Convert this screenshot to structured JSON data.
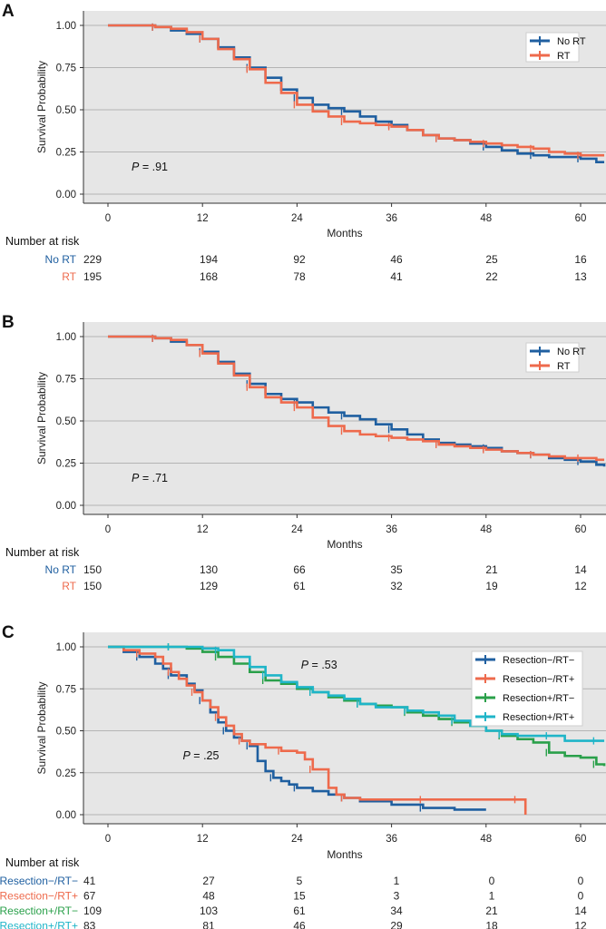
{
  "chart_data": [
    {
      "panel": "A",
      "type": "line",
      "xlabel": "Months",
      "ylabel": "Survival Probability",
      "x_ticks": [
        0,
        12,
        24,
        36,
        48,
        60
      ],
      "y_ticks": [
        "0.00",
        "0.25",
        "0.50",
        "0.75",
        "1.00"
      ],
      "xlim": [
        0,
        63
      ],
      "ylim": [
        0,
        1
      ],
      "p_value": {
        "label": "P",
        "value": " = .91"
      },
      "legend": "top-right",
      "series": [
        {
          "name": "No RT",
          "color": "#1f5fa0",
          "x": [
            0,
            4,
            6,
            8,
            10,
            12,
            14,
            16,
            18,
            20,
            22,
            24,
            26,
            28,
            30,
            32,
            34,
            36,
            38,
            40,
            42,
            44,
            46,
            48,
            50,
            52,
            54,
            56,
            58,
            60,
            62,
            63
          ],
          "y": [
            1.0,
            1.0,
            0.99,
            0.97,
            0.95,
            0.92,
            0.87,
            0.81,
            0.75,
            0.69,
            0.62,
            0.57,
            0.53,
            0.51,
            0.49,
            0.46,
            0.43,
            0.41,
            0.38,
            0.35,
            0.33,
            0.32,
            0.3,
            0.28,
            0.26,
            0.24,
            0.23,
            0.22,
            0.22,
            0.21,
            0.19,
            0.19
          ]
        },
        {
          "name": "RT",
          "color": "#ee6a4c",
          "x": [
            0,
            4,
            6,
            8,
            10,
            12,
            14,
            16,
            18,
            20,
            22,
            24,
            26,
            28,
            30,
            32,
            34,
            36,
            38,
            40,
            42,
            44,
            46,
            48,
            50,
            52,
            54,
            56,
            58,
            60,
            62,
            63
          ],
          "y": [
            1.0,
            1.0,
            0.99,
            0.98,
            0.96,
            0.92,
            0.86,
            0.8,
            0.74,
            0.66,
            0.6,
            0.53,
            0.49,
            0.46,
            0.43,
            0.42,
            0.41,
            0.4,
            0.38,
            0.35,
            0.33,
            0.32,
            0.31,
            0.3,
            0.29,
            0.28,
            0.27,
            0.25,
            0.24,
            0.23,
            0.23,
            0.23
          ]
        }
      ],
      "risk_table": {
        "title": "Number at risk",
        "rows": [
          {
            "name": "No RT",
            "color": "#1f5fa0",
            "values": [
              229,
              194,
              92,
              46,
              25,
              16
            ]
          },
          {
            "name": "RT",
            "color": "#ee6a4c",
            "values": [
              195,
              168,
              78,
              41,
              22,
              13
            ]
          }
        ]
      }
    },
    {
      "panel": "B",
      "type": "line",
      "xlabel": "Months",
      "ylabel": "Survival Probability",
      "x_ticks": [
        0,
        12,
        24,
        36,
        48,
        60
      ],
      "y_ticks": [
        "0.00",
        "0.25",
        "0.50",
        "0.75",
        "1.00"
      ],
      "xlim": [
        0,
        63
      ],
      "ylim": [
        0,
        1
      ],
      "p_value": {
        "label": "P",
        "value": " = .71"
      },
      "legend": "top-right",
      "series": [
        {
          "name": "No RT",
          "color": "#1f5fa0",
          "x": [
            0,
            4,
            6,
            8,
            10,
            12,
            14,
            16,
            18,
            20,
            22,
            24,
            26,
            28,
            30,
            32,
            34,
            36,
            38,
            40,
            42,
            44,
            46,
            48,
            50,
            52,
            54,
            56,
            58,
            60,
            62,
            63
          ],
          "y": [
            1.0,
            1.0,
            0.99,
            0.97,
            0.95,
            0.91,
            0.85,
            0.78,
            0.72,
            0.66,
            0.63,
            0.61,
            0.58,
            0.55,
            0.53,
            0.51,
            0.48,
            0.45,
            0.42,
            0.39,
            0.37,
            0.36,
            0.35,
            0.34,
            0.32,
            0.31,
            0.3,
            0.28,
            0.27,
            0.26,
            0.24,
            0.23
          ]
        },
        {
          "name": "RT",
          "color": "#ee6a4c",
          "x": [
            0,
            4,
            6,
            8,
            10,
            12,
            14,
            16,
            18,
            20,
            22,
            24,
            26,
            28,
            30,
            32,
            34,
            36,
            38,
            40,
            42,
            44,
            46,
            48,
            50,
            52,
            54,
            56,
            58,
            60,
            62,
            63
          ],
          "y": [
            1.0,
            1.0,
            0.99,
            0.98,
            0.95,
            0.9,
            0.84,
            0.77,
            0.7,
            0.64,
            0.61,
            0.58,
            0.52,
            0.47,
            0.44,
            0.42,
            0.41,
            0.4,
            0.39,
            0.38,
            0.36,
            0.35,
            0.34,
            0.33,
            0.32,
            0.31,
            0.3,
            0.29,
            0.28,
            0.28,
            0.27,
            0.27
          ]
        }
      ],
      "risk_table": {
        "title": "Number at risk",
        "rows": [
          {
            "name": "No RT",
            "color": "#1f5fa0",
            "values": [
              150,
              130,
              66,
              35,
              21,
              14
            ]
          },
          {
            "name": "RT",
            "color": "#ee6a4c",
            "values": [
              150,
              129,
              61,
              32,
              19,
              12
            ]
          }
        ]
      }
    },
    {
      "panel": "C",
      "type": "line",
      "xlabel": "Months",
      "ylabel": "Survival Probability",
      "x_ticks": [
        0,
        12,
        24,
        36,
        48,
        60
      ],
      "y_ticks": [
        "0.00",
        "0.25",
        "0.50",
        "0.75",
        "1.00"
      ],
      "xlim": [
        0,
        63
      ],
      "ylim": [
        0,
        1
      ],
      "p_values": [
        {
          "label": "P",
          "value": " = .53",
          "x": 24.5,
          "y": 0.87
        },
        {
          "label": "P",
          "value": " = .25",
          "x": 9.5,
          "y": 0.33
        }
      ],
      "legend": "top-right",
      "series": [
        {
          "name": "Resection−/RT−",
          "color": "#1f5fa0",
          "x": [
            0,
            2,
            4,
            6,
            7,
            8,
            10,
            11,
            12,
            13,
            14,
            15,
            16,
            17,
            18,
            19,
            20,
            21,
            22,
            23,
            24,
            26,
            28,
            30,
            32,
            36,
            40,
            44,
            48
          ],
          "y": [
            1.0,
            0.97,
            0.94,
            0.9,
            0.87,
            0.83,
            0.78,
            0.74,
            0.68,
            0.61,
            0.55,
            0.5,
            0.46,
            0.44,
            0.41,
            0.32,
            0.26,
            0.22,
            0.2,
            0.18,
            0.16,
            0.14,
            0.12,
            0.1,
            0.08,
            0.06,
            0.04,
            0.03,
            0.03
          ]
        },
        {
          "name": "Resection−/RT+",
          "color": "#ee6a4c",
          "x": [
            0,
            2,
            4,
            6,
            7,
            8,
            9,
            10,
            11,
            12,
            13,
            14,
            15,
            16,
            17,
            18,
            20,
            22,
            24,
            25,
            26,
            28,
            29,
            30,
            32,
            36,
            40,
            44,
            48,
            52,
            53
          ],
          "y": [
            1.0,
            0.98,
            0.96,
            0.94,
            0.9,
            0.85,
            0.81,
            0.77,
            0.73,
            0.68,
            0.64,
            0.58,
            0.53,
            0.48,
            0.44,
            0.42,
            0.4,
            0.38,
            0.37,
            0.33,
            0.27,
            0.16,
            0.12,
            0.1,
            0.09,
            0.09,
            0.09,
            0.09,
            0.09,
            0.09,
            0.0
          ]
        },
        {
          "name": "Resection+/RT−",
          "color": "#2aa04a",
          "x": [
            0,
            4,
            8,
            10,
            12,
            14,
            16,
            18,
            20,
            22,
            24,
            26,
            28,
            30,
            32,
            34,
            36,
            38,
            40,
            42,
            44,
            46,
            48,
            50,
            52,
            54,
            56,
            58,
            60,
            62,
            63
          ],
          "y": [
            1.0,
            1.0,
            1.0,
            0.99,
            0.97,
            0.94,
            0.9,
            0.85,
            0.8,
            0.78,
            0.75,
            0.73,
            0.7,
            0.68,
            0.66,
            0.65,
            0.64,
            0.61,
            0.59,
            0.57,
            0.55,
            0.53,
            0.5,
            0.47,
            0.45,
            0.43,
            0.37,
            0.35,
            0.34,
            0.3,
            0.29
          ]
        },
        {
          "name": "Resection+/RT+",
          "color": "#1fb5c8",
          "x": [
            0,
            4,
            8,
            10,
            12,
            14,
            16,
            18,
            20,
            22,
            24,
            26,
            28,
            30,
            32,
            34,
            36,
            38,
            40,
            42,
            44,
            46,
            48,
            50,
            52,
            54,
            56,
            58,
            60,
            62,
            63
          ],
          "y": [
            1.0,
            1.0,
            1.0,
            1.0,
            0.99,
            0.98,
            0.94,
            0.88,
            0.83,
            0.79,
            0.76,
            0.73,
            0.71,
            0.69,
            0.66,
            0.64,
            0.64,
            0.62,
            0.61,
            0.59,
            0.56,
            0.53,
            0.5,
            0.48,
            0.47,
            0.47,
            0.47,
            0.44,
            0.44,
            0.44,
            0.44
          ]
        }
      ],
      "risk_table": {
        "title": "Number at risk",
        "rows": [
          {
            "name": "Resection−/RT−",
            "color": "#1f5fa0",
            "values": [
              41,
              27,
              5,
              1,
              0,
              0
            ]
          },
          {
            "name": "Resection−/RT+",
            "color": "#ee6a4c",
            "values": [
              67,
              48,
              15,
              3,
              1,
              0
            ]
          },
          {
            "name": "Resection+/RT−",
            "color": "#2aa04a",
            "values": [
              109,
              103,
              61,
              34,
              21,
              14
            ]
          },
          {
            "name": "Resection+/RT+",
            "color": "#1fb5c8",
            "values": [
              83,
              81,
              46,
              29,
              18,
              12
            ]
          }
        ]
      }
    }
  ]
}
